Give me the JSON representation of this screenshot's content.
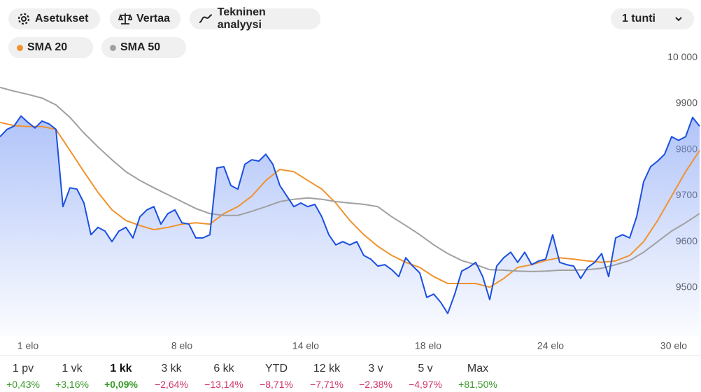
{
  "toolbar": {
    "settings": "Asetukset",
    "compare": "Vertaa",
    "technical": "Tekninen analyysi",
    "interval": "1 tunti"
  },
  "chart_data": {
    "type": "line",
    "x": [
      0,
      1,
      2,
      3,
      4,
      5,
      6,
      7,
      8,
      9,
      10,
      11,
      12,
      13,
      14,
      15,
      16,
      17,
      18,
      19,
      20,
      21,
      22,
      23,
      24,
      25,
      26,
      27,
      28,
      29,
      30,
      31,
      32,
      33,
      34,
      35,
      36,
      37,
      38,
      39,
      40,
      41,
      42,
      43,
      44,
      45,
      46,
      47,
      48,
      49,
      50,
      51,
      52,
      53,
      54,
      55,
      56,
      57,
      58,
      59,
      60,
      61,
      62,
      63,
      64,
      65,
      66,
      67,
      68,
      69,
      70,
      71,
      72,
      73,
      74,
      75,
      76,
      77,
      78,
      79,
      80,
      81,
      82,
      83,
      84,
      85,
      86,
      87,
      88,
      89,
      90,
      91,
      92,
      93,
      94,
      95,
      96,
      97,
      98,
      99,
      100
    ],
    "values": [
      9828,
      9844,
      9851,
      9873,
      9859,
      9847,
      9862,
      9856,
      9844,
      9676,
      9717,
      9714,
      9684,
      9615,
      9631,
      9623,
      9600,
      9623,
      9631,
      9608,
      9654,
      9669,
      9676,
      9638,
      9661,
      9669,
      9641,
      9638,
      9608,
      9608,
      9615,
      9760,
      9763,
      9722,
      9714,
      9768,
      9778,
      9775,
      9790,
      9768,
      9722,
      9699,
      9676,
      9684,
      9676,
      9681,
      9654,
      9615,
      9593,
      9600,
      9593,
      9600,
      9570,
      9562,
      9547,
      9550,
      9539,
      9524,
      9565,
      9547,
      9532,
      9479,
      9486,
      9468,
      9444,
      9486,
      9536,
      9544,
      9555,
      9524,
      9474,
      9547,
      9565,
      9577,
      9555,
      9577,
      9550,
      9558,
      9562,
      9615,
      9555,
      9550,
      9547,
      9520,
      9544,
      9555,
      9574,
      9524,
      9608,
      9615,
      9608,
      9654,
      9730,
      9763,
      9775,
      9790,
      9828,
      9820,
      9828,
      9870,
      9851
    ],
    "color": "#1a4fe0",
    "series": [
      {
        "name": "SMA 20",
        "color": "#f0922e",
        "x": [
          0,
          2,
          4,
          6,
          8,
          10,
          12,
          14,
          16,
          18,
          20,
          22,
          24,
          26,
          28,
          30,
          32,
          34,
          36,
          38,
          40,
          42,
          44,
          46,
          48,
          50,
          52,
          54,
          56,
          58,
          60,
          62,
          64,
          66,
          68,
          70,
          72,
          74,
          76,
          78,
          80,
          82,
          84,
          86,
          88,
          90,
          92,
          94,
          96,
          98,
          100
        ],
        "values": [
          9859,
          9852,
          9850,
          9850,
          9844,
          9798,
          9752,
          9707,
          9669,
          9646,
          9635,
          9626,
          9631,
          9638,
          9641,
          9638,
          9661,
          9676,
          9699,
          9733,
          9757,
          9752,
          9733,
          9714,
          9684,
          9646,
          9615,
          9590,
          9570,
          9555,
          9544,
          9524,
          9509,
          9509,
          9509,
          9501,
          9520,
          9544,
          9550,
          9559,
          9565,
          9562,
          9558,
          9555,
          9558,
          9570,
          9600,
          9646,
          9699,
          9752,
          9798
        ]
      },
      {
        "name": "SMA 50",
        "color": "#a0a0a0",
        "x": [
          0,
          2,
          4,
          6,
          8,
          10,
          12,
          14,
          16,
          18,
          20,
          22,
          24,
          26,
          28,
          30,
          32,
          34,
          36,
          38,
          40,
          42,
          44,
          46,
          48,
          50,
          52,
          54,
          56,
          58,
          60,
          62,
          64,
          66,
          68,
          70,
          72,
          74,
          76,
          78,
          80,
          82,
          84,
          86,
          88,
          90,
          92,
          94,
          96,
          98,
          100
        ],
        "values": [
          9935,
          9927,
          9920,
          9912,
          9897,
          9870,
          9836,
          9806,
          9778,
          9752,
          9733,
          9717,
          9702,
          9687,
          9672,
          9661,
          9657,
          9657,
          9666,
          9676,
          9687,
          9692,
          9695,
          9692,
          9687,
          9684,
          9681,
          9676,
          9654,
          9635,
          9615,
          9593,
          9574,
          9559,
          9550,
          9539,
          9538,
          9536,
          9535,
          9536,
          9538,
          9538,
          9539,
          9542,
          9550,
          9559,
          9577,
          9600,
          9623,
          9641,
          9661
        ]
      }
    ],
    "xlim": [
      0,
      100
    ],
    "xticks": [
      {
        "value": 4,
        "label": "1 elo"
      },
      {
        "value": 26,
        "label": "8 elo"
      },
      {
        "value": 43.7,
        "label": "14 elo"
      },
      {
        "value": 61.2,
        "label": "18 elo"
      },
      {
        "value": 78.7,
        "label": "24 elo"
      },
      {
        "value": 96.3,
        "label": "30 elo"
      }
    ],
    "ylim": [
      9395,
      10125
    ],
    "yticks": [
      9500,
      9600,
      9700,
      9800,
      9900,
      {
        "value": 10000,
        "label": "10 000"
      }
    ]
  },
  "periods": {
    "selected": 2,
    "items": [
      {
        "label": "1 pv",
        "change": "+0,43%"
      },
      {
        "label": "1 vk",
        "change": "+3,16%"
      },
      {
        "label": "1 kk",
        "change": "+0,09%"
      },
      {
        "label": "3 kk",
        "change": "−2,64%"
      },
      {
        "label": "6 kk",
        "change": "−13,14%"
      },
      {
        "label": "YTD",
        "change": "−8,71%"
      },
      {
        "label": "12 kk",
        "change": "−7,71%"
      },
      {
        "label": "3 v",
        "change": "−2,38%"
      },
      {
        "label": "5 v",
        "change": "−4,97%"
      },
      {
        "label": "Max",
        "change": "+81,50%"
      }
    ]
  }
}
